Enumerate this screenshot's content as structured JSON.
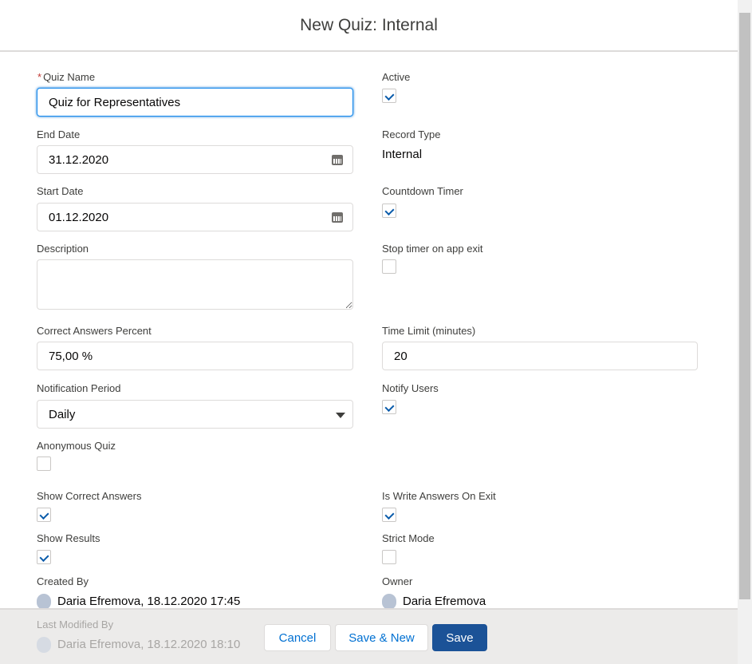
{
  "title": "New Quiz: Internal",
  "fields": {
    "quiz_name": {
      "label": "Quiz Name",
      "required": "*",
      "value": "Quiz for Representatives"
    },
    "active": {
      "label": "Active",
      "checked": true
    },
    "end_date": {
      "label": "End Date",
      "value": "31.12.2020"
    },
    "record_type": {
      "label": "Record Type",
      "value": "Internal"
    },
    "start_date": {
      "label": "Start Date",
      "value": "01.12.2020"
    },
    "countdown_timer": {
      "label": "Countdown Timer",
      "checked": true
    },
    "description": {
      "label": "Description",
      "value": ""
    },
    "stop_timer": {
      "label": "Stop timer on app exit",
      "checked": false
    },
    "correct_percent": {
      "label": "Correct Answers Percent",
      "value": "75,00 %"
    },
    "time_limit": {
      "label": "Time Limit (minutes)",
      "value": "20"
    },
    "notification_period": {
      "label": "Notification Period",
      "value": "Daily"
    },
    "notify_users": {
      "label": "Notify Users",
      "checked": true
    },
    "anonymous": {
      "label": "Anonymous Quiz",
      "checked": false
    },
    "show_correct": {
      "label": "Show Correct Answers",
      "checked": true
    },
    "write_on_exit": {
      "label": "Is Write Answers On Exit",
      "checked": true
    },
    "show_results": {
      "label": "Show Results",
      "checked": true
    },
    "strict_mode": {
      "label": "Strict Mode",
      "checked": false
    },
    "created_by": {
      "label": "Created By",
      "value": "Daria Efremova, 18.12.2020 17:45"
    },
    "owner": {
      "label": "Owner",
      "value": "Daria Efremova"
    },
    "last_modified": {
      "label": "Last Modified By",
      "value": "Daria Efremova, 18.12.2020 18:10"
    }
  },
  "footer": {
    "cancel": "Cancel",
    "save_new": "Save & New",
    "save": "Save"
  },
  "colors": {
    "brand": "#1b5297",
    "link": "#0070d2",
    "required": "#c23934"
  }
}
